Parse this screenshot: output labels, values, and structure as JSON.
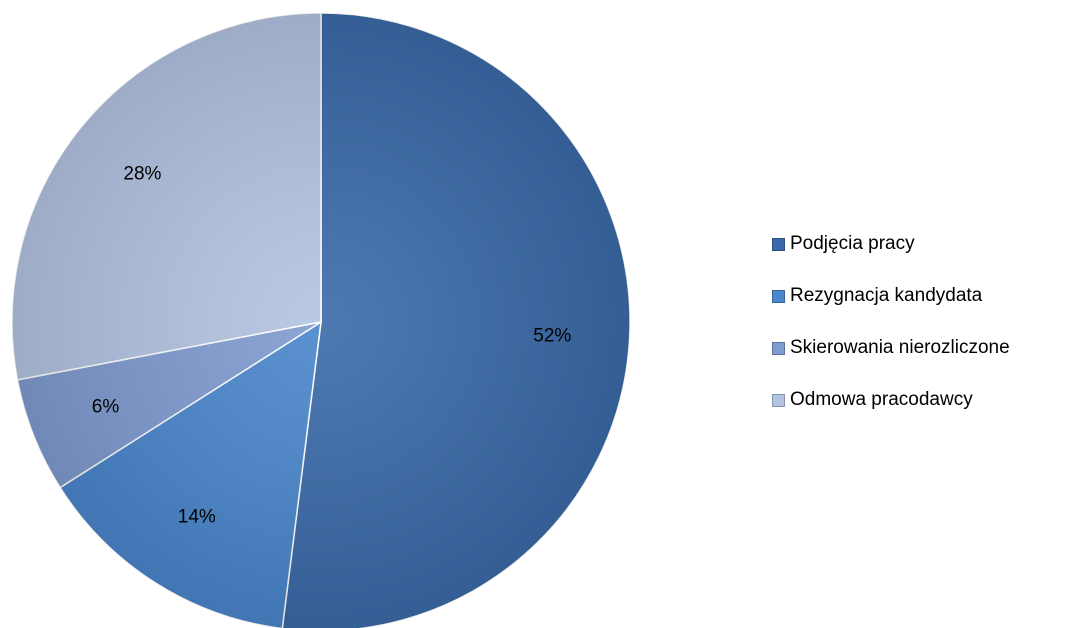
{
  "chart_data": {
    "type": "pie",
    "categories": [
      "Podjęcia pracy",
      "Rezygnacja kandydata",
      "Skierowania nierozliczone",
      "Odmowa pracodawcy"
    ],
    "values": [
      52,
      14,
      6,
      28
    ],
    "value_labels": [
      "52%",
      "14%",
      "6%",
      "28%"
    ],
    "colors": [
      "#3a6aa8",
      "#4a86cc",
      "#7f9bd0",
      "#b3c3e2"
    ],
    "start_angle_deg": 0,
    "direction": "clockwise",
    "legend_position": "right",
    "title": ""
  }
}
